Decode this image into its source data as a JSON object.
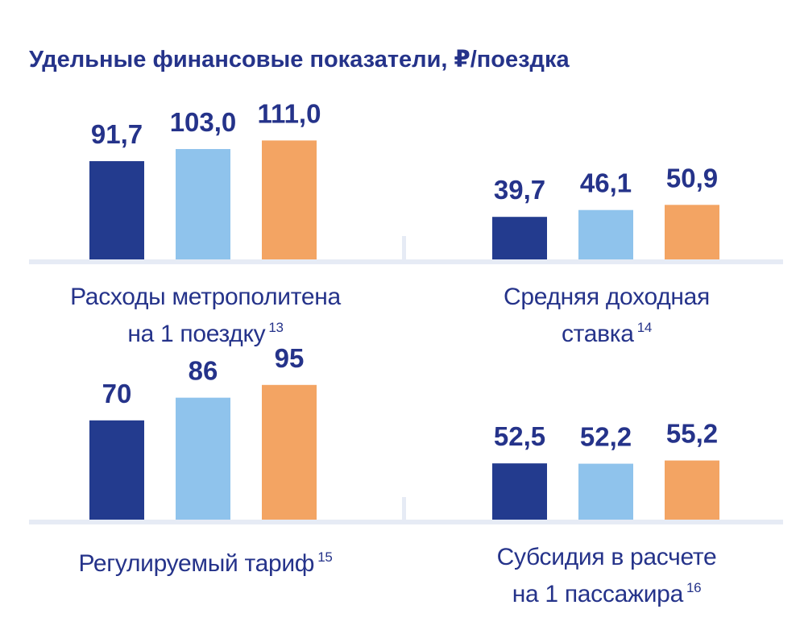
{
  "title": "Удельные финансовые показатели, ₽/поездка",
  "colors": {
    "bar1": "#233b8e",
    "bar2": "#8fc3ec",
    "bar3": "#f3a463",
    "text": "#25338a",
    "line": "#e6ebf5"
  },
  "chart_data": [
    {
      "type": "bar",
      "caption_lines": [
        "Расходы метрополитена",
        "на 1 поездку"
      ],
      "footnote": "13",
      "values": [
        91.7,
        103.0,
        111.0
      ],
      "labels": [
        "91,7",
        "103,0",
        "111,0"
      ]
    },
    {
      "type": "bar",
      "caption_lines": [
        "Средняя доходная",
        "ставка"
      ],
      "footnote": "14",
      "values": [
        39.7,
        46.1,
        50.9
      ],
      "labels": [
        "39,7",
        "46,1",
        "50,9"
      ]
    },
    {
      "type": "bar",
      "caption_lines": [
        "Регулируемый тариф"
      ],
      "footnote": "15",
      "values": [
        70,
        86,
        95
      ],
      "labels": [
        "70",
        "86",
        "95"
      ]
    },
    {
      "type": "bar",
      "caption_lines": [
        "Субсидия в расчете",
        "на 1 пассажира"
      ],
      "footnote": "16",
      "values": [
        52.5,
        52.2,
        55.2
      ],
      "labels": [
        "52,5",
        "52,2",
        "55,2"
      ]
    }
  ]
}
